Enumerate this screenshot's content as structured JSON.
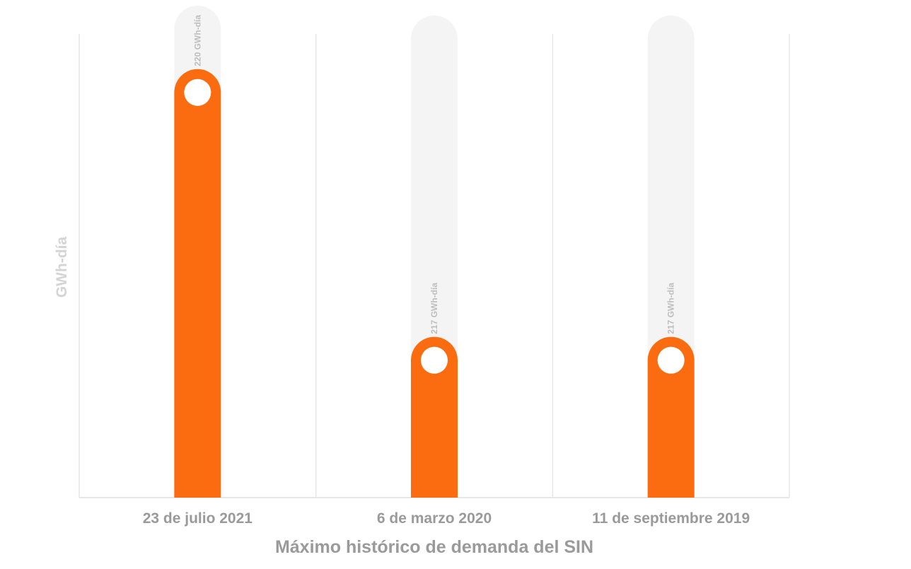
{
  "chart_data": {
    "type": "bar",
    "title": "",
    "xlabel": "Máximo histórico de demanda del SIN",
    "ylabel": "GWh-día",
    "categories": [
      "23 de julio 2021",
      "6 de marzo 2020",
      "11 de septiembre 2019"
    ],
    "values": [
      220,
      217,
      217
    ],
    "data_labels": [
      "220 GWh-día",
      "217 GWh-día",
      "217 GWh-día"
    ],
    "ylim": [
      215.2,
      220.6
    ],
    "grid": true,
    "bar_color": "#fb6c10",
    "track_color": "#f4f4f4",
    "axis_color": "#e6e6e6"
  }
}
